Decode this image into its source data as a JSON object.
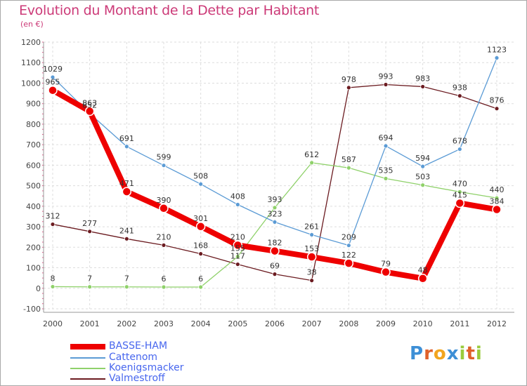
{
  "title": "Evolution du Montant de la Dette par Habitant",
  "subtitle": "(en €)",
  "logo": "Proxiti",
  "chart_data": {
    "type": "line",
    "x": [
      "2000",
      "2001",
      "2002",
      "2003",
      "2004",
      "2005",
      "2006",
      "2007",
      "2008",
      "2009",
      "2010",
      "2011",
      "2012"
    ],
    "ylim": [
      -100,
      1200
    ],
    "yticks": [
      -100,
      0,
      100,
      200,
      300,
      400,
      500,
      600,
      700,
      800,
      900,
      1000,
      1100,
      1200
    ],
    "grid": true,
    "legend_position": "bottom-left",
    "series": [
      {
        "name": "Valmestroff",
        "color": "#6b1b20",
        "width": 1.3,
        "point_r": 3,
        "values": [
          312,
          277,
          241,
          210,
          168,
          117,
          69,
          38,
          978,
          993,
          983,
          938,
          876
        ],
        "labels": [
          "312",
          "277",
          "241",
          "210",
          "168",
          "117",
          "69",
          "38",
          "978",
          "993",
          "983",
          "938",
          "876"
        ]
      },
      {
        "name": "Koenigsmacker",
        "color": "#8fd16a",
        "width": 1.3,
        "point_r": 3,
        "values": [
          8,
          7,
          7,
          6,
          6,
          155,
          393,
          612,
          587,
          535,
          503,
          470,
          440
        ],
        "labels": [
          "8",
          "7",
          "7",
          "6",
          "6",
          "155",
          "393",
          "612",
          "587",
          "535",
          "503",
          "470",
          "440"
        ]
      },
      {
        "name": "Cattenom",
        "color": "#5b9bd5",
        "width": 1.3,
        "point_r": 3,
        "values": [
          1029,
          852,
          691,
          599,
          508,
          408,
          323,
          261,
          209,
          694,
          594,
          678,
          1123
        ],
        "labels": [
          "1029",
          "852",
          "691",
          "599",
          "508",
          "408",
          "323",
          "261",
          "209",
          "694",
          "594",
          "678",
          "1123"
        ]
      },
      {
        "name": "BASSE-HAM",
        "color": "#ee0000",
        "width": 8,
        "point_r": 6,
        "values": [
          965,
          863,
          471,
          390,
          301,
          210,
          182,
          153,
          122,
          79,
          48,
          415,
          384
        ],
        "labels": [
          "965",
          "863",
          "471",
          "390",
          "301",
          "210",
          "182",
          "153",
          "122",
          "79",
          "48",
          "415",
          "384"
        ]
      }
    ]
  }
}
